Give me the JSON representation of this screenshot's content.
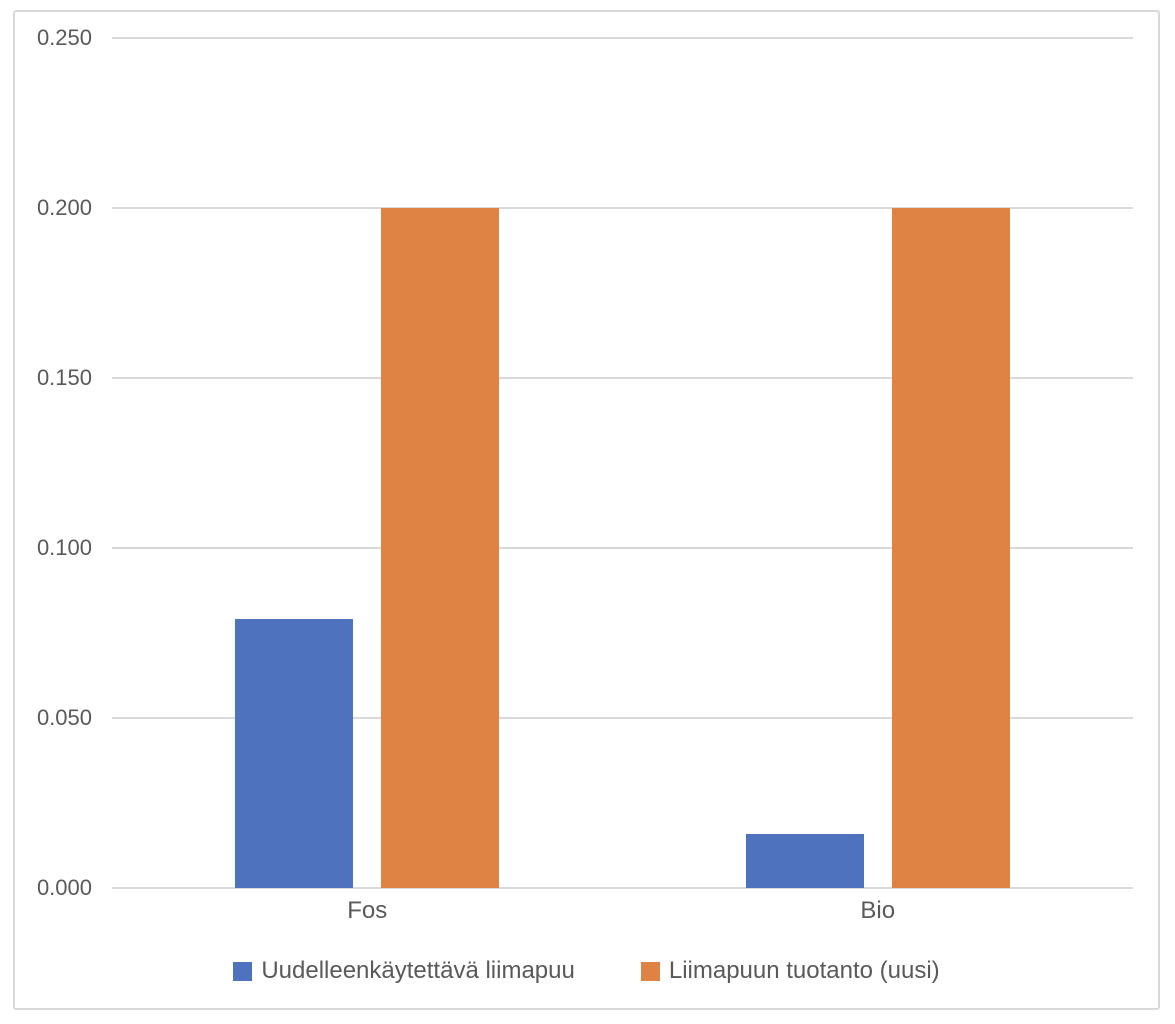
{
  "chart": {
    "background": "#FFFFFF",
    "border_color": "#D9D9D9",
    "grid_color": "#D9D9D9",
    "axis_line_color": "#D9D9D9",
    "label_color": "#595959"
  },
  "chart_data": {
    "type": "bar",
    "title": "",
    "categories": [
      "Fos",
      "Bio"
    ],
    "series": [
      {
        "name": "Uudelleenkäytettävä liimapuu",
        "color": "#4F72BE",
        "values": [
          0.079,
          0.016
        ]
      },
      {
        "name": "Liimapuun tuotanto (uusi)",
        "color": "#DE8344",
        "values": [
          0.2,
          0.2
        ]
      }
    ],
    "ylim": [
      0,
      0.25
    ],
    "ytick_step": 0.05,
    "ytick_labels": [
      "0.000",
      "0.050",
      "0.100",
      "0.150",
      "0.200",
      "0.250"
    ],
    "grid": true,
    "legend_position": "bottom"
  }
}
